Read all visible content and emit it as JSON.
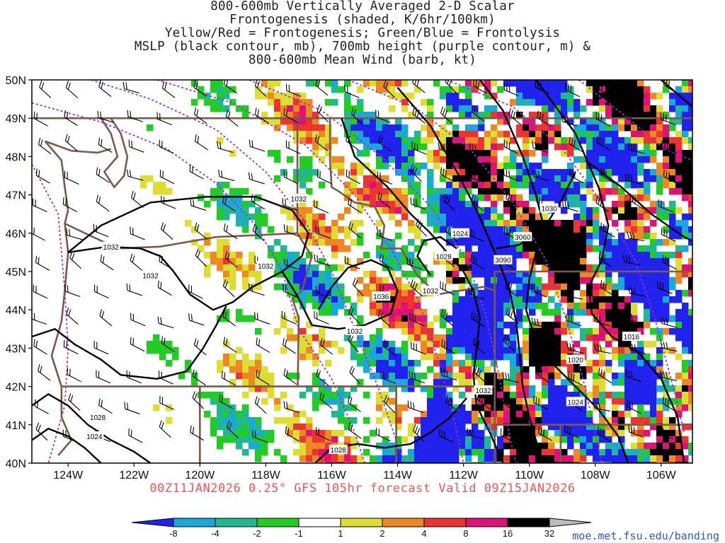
{
  "title_lines": [
    "800-600mb Vertically Averaged 2-D Scalar",
    "Frontogenesis (shaded, K/6hr/100km)",
    "Yellow/Red = Frontogenesis;  Green/Blue = Frontolysis",
    "MSLP (black contour, mb), 700mb height (purple contour, m) &",
    "800-600mb Mean Wind (barb, kt)"
  ],
  "map": {
    "lat_labels": [
      "50N",
      "49N",
      "48N",
      "47N",
      "46N",
      "45N",
      "44N",
      "43N",
      "42N",
      "41N",
      "40N"
    ],
    "lon_labels": [
      "124W",
      "122W",
      "120W",
      "118W",
      "116W",
      "114W",
      "112W",
      "110W",
      "108W",
      "106W"
    ],
    "pressure_labels": [
      {
        "text": "1032",
        "lon": -117.0,
        "lat": 46.9
      },
      {
        "text": "1032",
        "lon": -122.7,
        "lat": 45.65
      },
      {
        "text": "1032",
        "lon": -118.0,
        "lat": 45.15
      },
      {
        "text": "1032",
        "lon": -121.5,
        "lat": 44.9
      },
      {
        "text": "1036",
        "lon": -114.5,
        "lat": 44.35
      },
      {
        "text": "1032",
        "lon": -115.3,
        "lat": 43.45
      },
      {
        "text": "1032",
        "lon": -113.0,
        "lat": 44.5
      },
      {
        "text": "1028",
        "lon": -112.6,
        "lat": 45.4
      },
      {
        "text": "1024",
        "lon": -112.1,
        "lat": 46.0
      },
      {
        "text": "3060",
        "lon": -110.2,
        "lat": 45.9
      },
      {
        "text": "3090",
        "lon": -110.8,
        "lat": 45.3
      },
      {
        "text": "1030",
        "lon": -109.4,
        "lat": 46.65
      },
      {
        "text": "1016",
        "lon": -106.9,
        "lat": 43.3
      },
      {
        "text": "1020",
        "lon": -108.6,
        "lat": 42.7
      },
      {
        "text": "1024",
        "lon": -108.6,
        "lat": 41.6
      },
      {
        "text": "1032",
        "lon": -111.4,
        "lat": 41.9
      },
      {
        "text": "1028",
        "lon": -123.1,
        "lat": 41.2
      },
      {
        "text": "1024",
        "lon": -123.2,
        "lat": 40.7
      },
      {
        "text": "1028",
        "lon": -115.8,
        "lat": 40.35
      }
    ]
  },
  "colorbar": {
    "labels": [
      "-8",
      "-4",
      "-2",
      "-1",
      "1",
      "2",
      "4",
      "8",
      "16",
      "32"
    ],
    "colors": [
      "#2222ee",
      "#1aa8d8",
      "#20b890",
      "#22cc22",
      "#ffffff",
      "#dddd33",
      "#ee8822",
      "#ee3333",
      "#dd1177",
      "#000000"
    ]
  },
  "footer": "00Z11JAN2026 0.25° GFS 105hr forecast Valid 09Z15JAN2026",
  "credit": "moe.met.fsu.edu/banding"
}
